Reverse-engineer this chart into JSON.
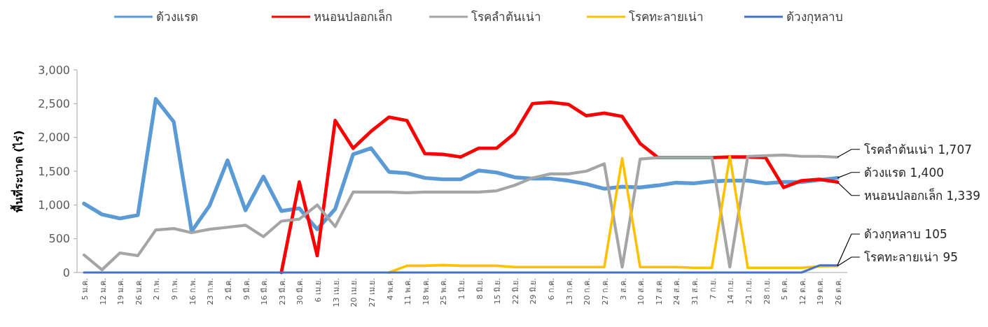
{
  "chart_data": {
    "type": "line",
    "ylabel": "พื้นที่ระบาด (ไร่)",
    "categories": [
      "5 ม.ค.",
      "12 ม.ค.",
      "19 ม.ค.",
      "26 ม.ค.",
      "2 ก.พ.",
      "9 ก.พ.",
      "16 ก.พ.",
      "23 ก.พ.",
      "2 มี.ค.",
      "9 มี.ค.",
      "16 มี.ค.",
      "23 มี.ค.",
      "30 มี.ค.",
      "6 เม.ย.",
      "13 เม.ย.",
      "20 เม.ย.",
      "27 เม.ย.",
      "4 พ.ค.",
      "11 พ.ค.",
      "18 พ.ค.",
      "25 พ.ค.",
      "1 มิ.ย.",
      "8 มิ.ย.",
      "15 มิ.ย.",
      "22 มิ.ย.",
      "29 มิ.ย.",
      "6 ก.ค.",
      "13 ก.ค.",
      "20 ก.ค.",
      "27 ก.ค.",
      "3 ส.ค.",
      "10 ส.ค.",
      "17 ส.ค.",
      "24 ส.ค.",
      "31 ส.ค.",
      "7 ก.ย.",
      "14 ก.ย.",
      "21 ก.ย.",
      "28 ก.ย.",
      "5 ต.ค.",
      "12 ต.ค.",
      "19 ต.ค.",
      "26 ต.ค."
    ],
    "series": [
      {
        "name": "ด้วงแรด",
        "color": "#5b9bd5",
        "values": [
          1020,
          860,
          800,
          850,
          2570,
          2230,
          610,
          990,
          1660,
          920,
          1420,
          910,
          950,
          640,
          940,
          1750,
          1840,
          1490,
          1470,
          1400,
          1380,
          1380,
          1510,
          1480,
          1410,
          1390,
          1390,
          1360,
          1310,
          1240,
          1270,
          1260,
          1290,
          1330,
          1320,
          1350,
          1360,
          1360,
          1320,
          1340,
          1340,
          1370,
          1400
        ]
      },
      {
        "name": "หนอนปลอกเล็ก",
        "color": "#ff0000",
        "values": [
          null,
          null,
          null,
          null,
          null,
          null,
          null,
          null,
          null,
          null,
          null,
          0,
          1340,
          250,
          2250,
          1840,
          2090,
          2300,
          2250,
          1760,
          1750,
          1710,
          1840,
          1840,
          2060,
          2500,
          2520,
          2490,
          2320,
          2360,
          2310,
          1910,
          1700,
          1700,
          1700,
          1700,
          1710,
          1710,
          1700,
          1260,
          1360,
          1380,
          1339
        ]
      },
      {
        "name": "โรคลำต้นเน่า",
        "color": "#a5a5a5",
        "values": [
          260,
          40,
          290,
          250,
          630,
          650,
          590,
          640,
          670,
          700,
          530,
          760,
          790,
          1000,
          680,
          1190,
          1190,
          1190,
          1180,
          1190,
          1190,
          1190,
          1190,
          1210,
          1290,
          1400,
          1460,
          1460,
          1500,
          1610,
          80,
          1680,
          1700,
          1700,
          1700,
          1700,
          80,
          1720,
          1730,
          1740,
          1720,
          1720,
          1707
        ]
      },
      {
        "name": "โรคทะลายเน่า",
        "color": "#ffc000",
        "values": [
          null,
          null,
          null,
          null,
          null,
          null,
          null,
          null,
          null,
          null,
          null,
          null,
          null,
          null,
          null,
          null,
          null,
          0,
          100,
          100,
          110,
          100,
          100,
          100,
          80,
          80,
          80,
          80,
          80,
          80,
          1690,
          80,
          80,
          80,
          70,
          70,
          1720,
          70,
          70,
          70,
          70,
          90,
          95
        ]
      },
      {
        "name": "ด้วงกุหลาบ",
        "color": "#4472c4",
        "values": [
          0,
          0,
          0,
          0,
          0,
          0,
          0,
          0,
          0,
          0,
          0,
          0,
          0,
          0,
          0,
          0,
          0,
          0,
          0,
          0,
          0,
          0,
          0,
          0,
          0,
          0,
          0,
          0,
          0,
          0,
          0,
          0,
          0,
          0,
          0,
          0,
          0,
          0,
          0,
          0,
          0,
          105,
          105
        ]
      }
    ],
    "ylim": [
      0,
      3000
    ],
    "yticks": [
      0,
      500,
      {
        "value": 1000,
        "label": "1,000"
      },
      {
        "value": 1500,
        "label": "1,500"
      },
      {
        "value": 2000,
        "label": "2,000"
      },
      {
        "value": 2500,
        "label": "2,500"
      },
      {
        "value": 3000,
        "label": "3,000"
      }
    ],
    "grid": false,
    "legend": "top",
    "marker": "none",
    "line_style": "solid",
    "annotations": [
      {
        "text": "โรคลำต้นเน่า 1,707",
        "x": "26 ต.ค.",
        "y": 1707
      },
      {
        "text": "ด้วงแรด 1,400",
        "x": "26 ต.ค.",
        "y": 1400
      },
      {
        "text": "หนอนปลอกเล็ก 1,339",
        "x": "26 ต.ค.",
        "y": 1339
      },
      {
        "text": "ด้วงกุหลาบ 105",
        "x": "26 ต.ค.",
        "y": 105
      },
      {
        "text": "โรคทะลายเน่า 95",
        "x": "26 ต.ค.",
        "y": 95
      }
    ]
  }
}
